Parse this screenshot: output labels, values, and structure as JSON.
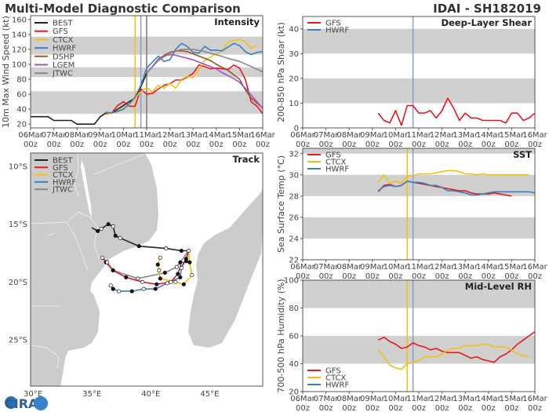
{
  "header": {
    "title": "Multi-Model Diagnostic Comparison",
    "storm": "IDAI - SH182019"
  },
  "x_ticks": [
    "06Mar",
    "07Mar",
    "08Mar",
    "09Mar",
    "10Mar",
    "11Mar",
    "12Mar",
    "13Mar",
    "14Mar",
    "15Mar",
    "16Mar"
  ],
  "x_tick_sub": "00z",
  "colors": {
    "BEST": "#222222",
    "GFS": "#e8191c",
    "CTCX": "#f2c10f",
    "HWRF": "#3a7fc1",
    "DSHP": "#9a5528",
    "LGEM": "#a352c4",
    "JTWC": "#888888",
    "band": "#d0d0d0"
  },
  "logo_text": "CIRA",
  "chart_data": [
    {
      "id": "intensity",
      "type": "line",
      "title": "Intensity",
      "ylabel": "10m Max Wind Speed (kt)",
      "ylim": [
        15,
        165
      ],
      "yticks": [
        20,
        40,
        60,
        80,
        100,
        120,
        140,
        160
      ],
      "bands": [
        [
          34,
          64
        ],
        [
          83,
          96
        ],
        [
          113,
          137
        ]
      ],
      "grid": false,
      "legend": "top-left",
      "x_start": "06Mar 00z",
      "x_step_hours": 6,
      "init_lines": [
        {
          "model": "CTCX",
          "time": "10Mar 12z",
          "color": "#f2c10f"
        },
        {
          "model": "HWRF",
          "time": "10Mar 18z",
          "color": "#8a9cc4"
        },
        {
          "model": "JTWC",
          "time": "11Mar 00z",
          "color": "#8a7474"
        }
      ],
      "series": [
        {
          "name": "BEST",
          "values": [
            30,
            30,
            30,
            30,
            25,
            25,
            25,
            25,
            20,
            20,
            20,
            20,
            30,
            35,
            35,
            40,
            45,
            50,
            55,
            70,
            88,
            null,
            null,
            null,
            null,
            null,
            null,
            null,
            null,
            null,
            null,
            null,
            null,
            null,
            null,
            null,
            null,
            null,
            null,
            null,
            null
          ]
        },
        {
          "name": "GFS",
          "values": [
            null,
            null,
            null,
            null,
            null,
            null,
            null,
            null,
            null,
            null,
            null,
            null,
            null,
            33,
            35,
            45,
            50,
            44,
            44,
            67,
            60,
            61,
            67,
            72,
            74,
            79,
            79,
            83,
            88,
            99,
            97,
            94,
            95,
            94,
            93,
            99,
            95,
            80,
            50,
            44,
            34
          ]
        },
        {
          "name": "CTCX",
          "values": [
            null,
            null,
            null,
            null,
            null,
            null,
            null,
            null,
            null,
            null,
            null,
            null,
            null,
            33,
            35,
            37,
            42,
            46,
            55,
            63,
            69,
            63,
            72,
            68,
            75,
            68,
            80,
            84,
            82,
            93,
            105,
            110,
            114,
            118,
            130,
            132,
            133,
            130,
            121,
            126,
            null
          ]
        },
        {
          "name": "HWRF",
          "values": [
            null,
            null,
            null,
            null,
            null,
            null,
            null,
            null,
            null,
            null,
            null,
            null,
            null,
            36,
            35,
            37,
            40,
            47,
            56,
            72,
            95,
            103,
            111,
            104,
            106,
            120,
            128,
            124,
            116,
            115,
            124,
            119,
            119,
            118,
            123,
            128,
            125,
            117,
            113,
            116,
            117
          ]
        },
        {
          "name": "DSHP",
          "values": [
            null,
            null,
            null,
            null,
            null,
            null,
            null,
            null,
            null,
            null,
            null,
            null,
            null,
            null,
            null,
            null,
            null,
            null,
            null,
            null,
            88,
            97,
            107,
            112,
            116,
            118,
            118,
            117,
            114,
            111,
            108,
            105,
            100,
            96,
            92,
            86,
            80,
            66,
            55,
            48,
            42
          ]
        },
        {
          "name": "LGEM",
          "values": [
            null,
            null,
            null,
            null,
            null,
            null,
            null,
            null,
            null,
            null,
            null,
            null,
            null,
            null,
            null,
            null,
            null,
            null,
            null,
            null,
            88,
            97,
            107,
            111,
            113,
            112,
            110,
            108,
            106,
            103,
            100,
            97,
            94,
            89,
            85,
            81,
            76,
            68,
            59,
            50,
            41
          ]
        },
        {
          "name": "JTWC",
          "values": [
            null,
            null,
            null,
            null,
            null,
            null,
            null,
            null,
            null,
            null,
            null,
            null,
            null,
            null,
            null,
            null,
            null,
            null,
            null,
            null,
            88,
            null,
            105,
            null,
            115,
            null,
            120,
            null,
            120,
            null,
            117,
            null,
            113,
            null,
            108,
            null,
            104,
            null,
            97,
            null,
            90
          ]
        }
      ]
    },
    {
      "id": "shear",
      "type": "line",
      "title": "Deep-Layer Shear",
      "ylabel": "200-850 hPa Shear (kt)",
      "ylim": [
        0,
        45
      ],
      "yticks": [
        0,
        10,
        20,
        30,
        40
      ],
      "bands": [
        [
          10,
          20
        ],
        [
          30,
          40
        ]
      ],
      "grid": false,
      "legend": "top-left",
      "x_start": "06Mar 00z",
      "x_step_hours": 6,
      "init_lines": [
        {
          "model": "HWRF",
          "time": "10Mar 18z",
          "color": "#8a9cc4"
        }
      ],
      "series": [
        {
          "name": "GFS",
          "values": [
            null,
            null,
            null,
            null,
            null,
            null,
            null,
            null,
            null,
            null,
            null,
            null,
            null,
            6,
            3,
            2,
            7,
            1,
            9,
            9,
            6,
            6,
            7,
            4,
            7,
            12,
            8,
            3,
            6,
            4,
            4,
            3,
            3,
            3,
            3,
            2,
            6,
            6,
            3,
            4,
            6
          ]
        },
        {
          "name": "HWRF",
          "values": []
        }
      ]
    },
    {
      "id": "sst",
      "type": "line",
      "title": "SST",
      "ylabel": "Sea Surface Temp (°C)",
      "ylim": [
        22,
        32.5
      ],
      "yticks": [
        22,
        24,
        26,
        28,
        30,
        32
      ],
      "bands": [
        [
          24,
          26
        ],
        [
          28,
          30
        ],
        [
          32,
          32.5
        ]
      ],
      "grid": false,
      "legend": "top-left",
      "x_start": "06Mar 00z",
      "x_step_hours": 6,
      "init_lines": [
        {
          "model": "CTCX",
          "time": "10Mar 12z",
          "color": "#f2c10f"
        },
        {
          "model": "HWRF",
          "time": "10Mar 18z",
          "color": "#8a9cc4"
        }
      ],
      "series": [
        {
          "name": "GFS",
          "values": [
            null,
            null,
            null,
            null,
            null,
            null,
            null,
            null,
            null,
            null,
            null,
            null,
            null,
            28.4,
            29.0,
            29.1,
            28.9,
            29.0,
            29.4,
            29.3,
            29.2,
            29.1,
            29.0,
            28.9,
            28.8,
            28.7,
            28.6,
            28.5,
            28.5,
            28.3,
            28.2,
            28.2,
            28.2,
            28.3,
            28.2,
            28.1,
            28.0,
            null,
            null,
            null,
            null
          ]
        },
        {
          "name": "CTCX",
          "values": [
            null,
            null,
            null,
            null,
            null,
            null,
            null,
            null,
            null,
            null,
            null,
            null,
            null,
            29.3,
            30.0,
            29.2,
            29.4,
            29.2,
            29.9,
            29.9,
            30.1,
            30.1,
            30.1,
            30.2,
            30.3,
            30.4,
            30.4,
            30.3,
            30.1,
            30.1,
            30.0,
            30.1,
            30.0,
            30.0,
            30.0,
            30.0,
            30.0,
            30.0,
            30.0,
            30.0,
            null
          ]
        },
        {
          "name": "HWRF",
          "values": [
            null,
            null,
            null,
            null,
            null,
            null,
            null,
            null,
            null,
            null,
            null,
            null,
            null,
            28.5,
            28.9,
            29.0,
            28.9,
            29.0,
            29.4,
            29.3,
            29.3,
            29.2,
            29.0,
            29.0,
            28.8,
            28.5,
            28.5,
            28.4,
            28.3,
            28.1,
            28.1,
            28.2,
            28.3,
            28.4,
            28.4,
            28.4,
            28.4,
            28.4,
            28.4,
            28.4,
            28.3
          ]
        }
      ]
    },
    {
      "id": "rh",
      "type": "line",
      "title": "Mid-Level RH",
      "ylabel": "700-500 hPa Humidity (%)",
      "ylim": [
        20,
        100
      ],
      "yticks": [
        20,
        40,
        60,
        80,
        100
      ],
      "bands": [
        [
          40,
          60
        ],
        [
          80,
          100
        ]
      ],
      "grid": false,
      "legend": "bottom-left",
      "x_start": "06Mar 00z",
      "x_step_hours": 6,
      "init_lines": [
        {
          "model": "CTCX",
          "time": "10Mar 12z",
          "color": "#f2c10f"
        },
        {
          "model": "HWRF",
          "time": "10Mar 18z",
          "color": "#8a9cc4"
        }
      ],
      "series": [
        {
          "name": "GFS",
          "values": [
            null,
            null,
            null,
            null,
            null,
            null,
            null,
            null,
            null,
            null,
            null,
            null,
            null,
            57,
            59,
            56,
            54,
            51,
            52,
            55,
            53,
            52,
            50,
            51,
            49,
            48,
            48,
            48,
            46,
            44,
            45,
            43,
            42,
            41,
            45,
            47,
            50,
            54,
            57,
            60,
            63
          ]
        },
        {
          "name": "CTCX",
          "values": [
            null,
            null,
            null,
            null,
            null,
            null,
            null,
            null,
            null,
            null,
            null,
            null,
            null,
            50,
            45,
            39,
            37,
            36,
            40,
            41,
            42,
            45,
            45,
            45,
            47,
            50,
            51,
            51,
            53,
            53,
            53,
            54,
            54,
            52,
            52,
            52,
            50,
            47,
            46,
            45,
            null
          ]
        },
        {
          "name": "HWRF",
          "values": []
        }
      ]
    },
    {
      "id": "track",
      "type": "map",
      "title": "Track",
      "legend": "top-left",
      "lon_range": [
        29.8,
        49.5
      ],
      "lat_range": [
        -29.0,
        -8.85
      ],
      "lon_ticks": [
        "30°E",
        "35°E",
        "40°E",
        "45°E"
      ],
      "lat_ticks": [
        "10°S",
        "15°S",
        "20°S",
        "25°S"
      ],
      "tracks": [
        {
          "name": "BEST",
          "points": [
            [
              35.0,
              -15.3
            ],
            [
              35.5,
              -15.6
            ],
            [
              35.8,
              -15.4
            ],
            [
              36.4,
              -15.0
            ],
            [
              36.8,
              -15.2
            ],
            [
              37.0,
              -16.0
            ],
            [
              37.4,
              -16.2
            ],
            [
              39.0,
              -16.9
            ],
            [
              41.3,
              -17.1
            ],
            [
              42.6,
              -17.3
            ],
            [
              43.2,
              -17.3
            ]
          ]
        },
        {
          "name": "GFS",
          "points": [
            [
              43.2,
              -17.3
            ],
            [
              43.0,
              -18.2
            ],
            [
              42.6,
              -18.4
            ],
            [
              42.3,
              -19.3
            ],
            [
              41.7,
              -20.0
            ],
            [
              40.5,
              -20.2
            ],
            [
              39.3,
              -20.0
            ],
            [
              37.9,
              -19.6
            ],
            [
              36.8,
              -19.0
            ],
            [
              36.2,
              -18.3
            ],
            [
              35.9,
              -17.9
            ]
          ]
        },
        {
          "name": "CTCX",
          "points": [
            [
              43.2,
              -17.3
            ],
            [
              43.3,
              -18.3
            ],
            [
              43.5,
              -19.4
            ],
            [
              42.8,
              -20.2
            ],
            [
              42.1,
              -20.0
            ],
            [
              40.8,
              -19.7
            ],
            [
              40.7,
              -19.0
            ],
            [
              40.6,
              -18.5
            ],
            [
              40.8,
              -17.9
            ]
          ]
        },
        {
          "name": "HWRF",
          "points": [
            [
              43.2,
              -17.3
            ],
            [
              43.0,
              -18.0
            ],
            [
              42.6,
              -18.8
            ],
            [
              42.5,
              -19.6
            ],
            [
              41.4,
              -20.1
            ],
            [
              40.4,
              -20.6
            ],
            [
              39.4,
              -20.6
            ],
            [
              38.4,
              -20.8
            ],
            [
              37.3,
              -20.8
            ],
            [
              36.8,
              -20.6
            ],
            [
              36.6,
              -20.3
            ]
          ]
        },
        {
          "name": "JTWC",
          "points": [
            [
              43.2,
              -17.3
            ],
            [
              42.5,
              -18.3
            ],
            [
              42.2,
              -18.7
            ],
            [
              41.2,
              -19.2
            ],
            [
              38.9,
              -19.7
            ],
            [
              36.8,
              -19.0
            ],
            [
              36.3,
              -18.3
            ]
          ]
        }
      ]
    }
  ]
}
